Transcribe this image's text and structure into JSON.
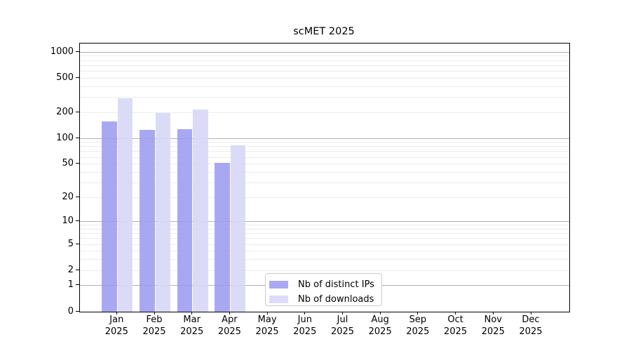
{
  "title": "scMET 2025",
  "chart_data": {
    "type": "bar",
    "title": "scMET 2025",
    "categories": [
      "Jan 2025",
      "Feb 2025",
      "Mar 2025",
      "Apr 2025",
      "May 2025",
      "Jun 2025",
      "Jul 2025",
      "Aug 2025",
      "Sep 2025",
      "Oct 2025",
      "Nov 2025",
      "Dec 2025"
    ],
    "series": [
      {
        "name": "Nb of distinct IPs",
        "display_color": "#a9a9f3",
        "fill": "rgba(155,155,240,0.87)",
        "values": [
          156,
          126,
          127,
          52,
          null,
          null,
          null,
          null,
          null,
          null,
          null,
          null
        ]
      },
      {
        "name": "Nb of downloads",
        "display_color": "#dcdcf8",
        "fill": "rgba(215,215,247,0.9)",
        "values": [
          290,
          196,
          215,
          83,
          null,
          null,
          null,
          null,
          null,
          null,
          null,
          null
        ]
      }
    ],
    "yscale": "log1p",
    "yticks": [
      0,
      1,
      2,
      5,
      10,
      20,
      50,
      100,
      200,
      500,
      1000
    ],
    "ylim": [
      0,
      1267
    ],
    "xlabel": "",
    "ylabel": "",
    "grid": "horizontal",
    "legend_position": "lower center-left",
    "colors": {
      "major_grid": "#b2b2b2",
      "minor_grid": "#ececec",
      "axis": "#000000",
      "background": "#ffffff"
    }
  }
}
